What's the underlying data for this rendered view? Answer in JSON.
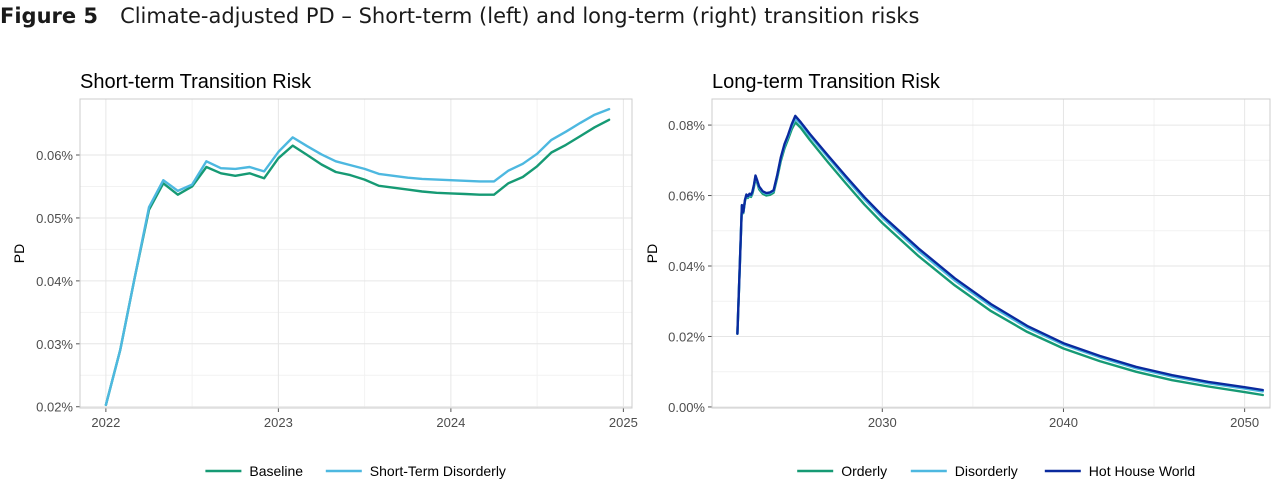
{
  "figure": {
    "label": "Figure 5",
    "title": "Climate-adjusted PD – Short-term (left) and long-term (right) transition risks"
  },
  "colors": {
    "green": "#169a74",
    "lightblue": "#4db8e0",
    "navy": "#0a2a9e"
  },
  "chart_data": [
    {
      "type": "line",
      "title": "Short-term Transition Risk",
      "xlabel": "",
      "ylabel": "PD",
      "xlim": [
        2021.85,
        2025.05
      ],
      "ylim": [
        0.0198,
        0.0689
      ],
      "x_ticks": [
        2022,
        2023,
        2024,
        2025
      ],
      "x_tick_labels": [
        "2022",
        "2023",
        "2024",
        "2025"
      ],
      "y_ticks": [
        0.02,
        0.03,
        0.04,
        0.05,
        0.06
      ],
      "y_tick_labels": [
        "0.02%",
        "0.03%",
        "0.04%",
        "0.05%",
        "0.06%"
      ],
      "grid": true,
      "legend_position": "bottom",
      "x": [
        2022.0,
        2022.083,
        2022.167,
        2022.25,
        2022.333,
        2022.417,
        2022.5,
        2022.583,
        2022.667,
        2022.75,
        2022.833,
        2022.917,
        2023.0,
        2023.083,
        2023.167,
        2023.25,
        2023.333,
        2023.417,
        2023.5,
        2023.583,
        2023.667,
        2023.75,
        2023.833,
        2023.917,
        2024.0,
        2024.083,
        2024.167,
        2024.25,
        2024.333,
        2024.417,
        2024.5,
        2024.583,
        2024.667,
        2024.75,
        2024.833,
        2024.917
      ],
      "series": [
        {
          "name": "Baseline",
          "color": "#169a74",
          "values": [
            0.0203,
            0.029,
            0.0405,
            0.0513,
            0.0555,
            0.0537,
            0.055,
            0.0581,
            0.0571,
            0.0567,
            0.0571,
            0.0563,
            0.0595,
            0.0615,
            0.06,
            0.0585,
            0.0573,
            0.0568,
            0.0561,
            0.0551,
            0.0548,
            0.0545,
            0.0542,
            0.054,
            0.0539,
            0.0538,
            0.0537,
            0.0537,
            0.0555,
            0.0565,
            0.0582,
            0.0604,
            0.0616,
            0.063,
            0.0644,
            0.0656
          ]
        },
        {
          "name": "Short-Term Disorderly",
          "color": "#4db8e0",
          "values": [
            0.0203,
            0.029,
            0.0405,
            0.0517,
            0.056,
            0.0543,
            0.0553,
            0.059,
            0.0579,
            0.0578,
            0.0581,
            0.0574,
            0.0605,
            0.0628,
            0.0614,
            0.0601,
            0.059,
            0.0584,
            0.0578,
            0.057,
            0.0567,
            0.0564,
            0.0562,
            0.0561,
            0.056,
            0.0559,
            0.0558,
            0.0558,
            0.0575,
            0.0586,
            0.0602,
            0.0624,
            0.0637,
            0.0651,
            0.0664,
            0.0673
          ]
        }
      ]
    },
    {
      "type": "line",
      "title": "Long-term Transition Risk",
      "xlabel": "",
      "ylabel": "PD",
      "xlim": [
        2020.6,
        2051.4
      ],
      "ylim": [
        -0.0003,
        0.0874
      ],
      "x_ticks": [
        2030,
        2040,
        2050
      ],
      "x_tick_labels": [
        "2030",
        "2040",
        "2050"
      ],
      "y_ticks": [
        0.0,
        0.02,
        0.04,
        0.06,
        0.08
      ],
      "y_tick_labels": [
        "0.00%",
        "0.02%",
        "0.04%",
        "0.06%",
        "0.08%"
      ],
      "grid": true,
      "legend_position": "bottom",
      "x": [
        2022.0,
        2022.25,
        2022.33,
        2022.42,
        2022.5,
        2022.58,
        2022.67,
        2022.75,
        2022.83,
        2022.92,
        2023.0,
        2023.1,
        2023.2,
        2023.4,
        2023.6,
        2023.8,
        2024.0,
        2024.2,
        2024.4,
        2024.6,
        2024.8,
        2025.0,
        2025.2,
        2025.5,
        2026.0,
        2027.0,
        2028.0,
        2029.0,
        2030.0,
        2032.0,
        2034.0,
        2036.0,
        2038.0,
        2040.0,
        2042.0,
        2044.0,
        2046.0,
        2048.0,
        2050.0,
        2051.0
      ],
      "series": [
        {
          "name": "Orderly",
          "color": "#169a74",
          "values": [
            0.0208,
            0.057,
            0.055,
            0.0585,
            0.0598,
            0.0593,
            0.06,
            0.0596,
            0.0605,
            0.0625,
            0.065,
            0.0635,
            0.0618,
            0.0605,
            0.06,
            0.0602,
            0.0608,
            0.065,
            0.0698,
            0.0734,
            0.076,
            0.0788,
            0.0808,
            0.0792,
            0.0758,
            0.0695,
            0.0634,
            0.0575,
            0.0522,
            0.0428,
            0.0345,
            0.0272,
            0.0213,
            0.0166,
            0.013,
            0.01,
            0.0076,
            0.0058,
            0.0042,
            0.0034
          ]
        },
        {
          "name": "Disorderly",
          "color": "#4db8e0",
          "values": [
            0.0208,
            0.0572,
            0.0552,
            0.0587,
            0.0601,
            0.0596,
            0.0603,
            0.06,
            0.0609,
            0.0629,
            0.0654,
            0.0639,
            0.0623,
            0.061,
            0.0605,
            0.0607,
            0.0613,
            0.0656,
            0.0705,
            0.0742,
            0.0768,
            0.0797,
            0.0818,
            0.0803,
            0.077,
            0.0709,
            0.0648,
            0.059,
            0.0537,
            0.0443,
            0.0359,
            0.0286,
            0.0225,
            0.0177,
            0.0141,
            0.011,
            0.0086,
            0.0067,
            0.0052,
            0.0044
          ]
        },
        {
          "name": "Hot House World",
          "color": "#0a2a9e",
          "values": [
            0.0208,
            0.0573,
            0.0553,
            0.0588,
            0.0603,
            0.0598,
            0.0605,
            0.0602,
            0.0611,
            0.0631,
            0.0657,
            0.0642,
            0.0626,
            0.0612,
            0.0607,
            0.0609,
            0.0615,
            0.0658,
            0.0708,
            0.0746,
            0.0772,
            0.0802,
            0.0826,
            0.0808,
            0.0775,
            0.0714,
            0.0654,
            0.0596,
            0.0543,
            0.045,
            0.0365,
            0.0292,
            0.023,
            0.0181,
            0.0145,
            0.0114,
            0.009,
            0.0071,
            0.0056,
            0.0048
          ]
        }
      ]
    }
  ]
}
